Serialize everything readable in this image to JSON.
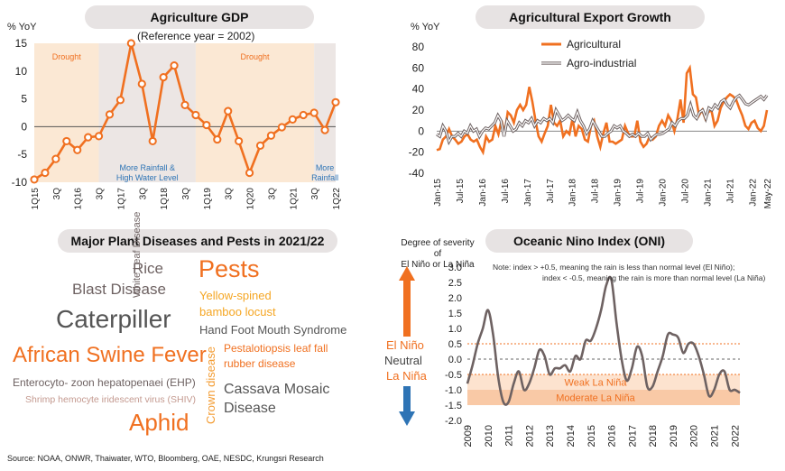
{
  "panels": {
    "agri_gdp": {
      "title": "Agriculture GDP",
      "subtitle": "(Reference year = 2002)",
      "ylabel": "% YoY",
      "band_labels": {
        "drought1": "Drought",
        "drought2": "Drought",
        "rain1a": "More Rainfall &",
        "rain1b": "High Water Level",
        "rain2a": "More",
        "rain2b": "Rainfall"
      }
    },
    "export": {
      "title": "Agricultural Export Growth",
      "ylabel": "% YoY"
    },
    "diseases": {
      "title": "Major Plant Diseases and Pests in 2021/22",
      "words": {
        "rice": "Rice",
        "blast": "Blast Disease",
        "caterpiller": "Caterpiller",
        "asf": "African Swine Fever",
        "ehp": "Enterocyto- zoon hepatopenaei (EHP)",
        "shiv": "Shrimp hemocyte iridescent virus (SHIV)",
        "aphid": "Aphid",
        "white_leaf": "White Leaf Disease",
        "crown": "Crown disease",
        "pests": "Pests",
        "bamboo1": "Yellow-spined",
        "bamboo2": "bamboo locust",
        "hfmd": "Hand Foot Mouth Syndrome",
        "pesta1": "Pestalotiopsis leaf fall",
        "pesta2": "rubber disease",
        "cassava1": "Cassava Mosaic",
        "cassava2": "Disease"
      }
    },
    "oni": {
      "title": "Oceanic Nino Index (ONI)",
      "severity1": "Degree of severity of",
      "severity2": "El Niño or La Niña",
      "el_nino": "El Niño",
      "neutral": "Neutral",
      "la_nina": "La Niña",
      "note1": "Note: index > +0.5, meaning the rain is less than normal level (El Niño);",
      "note2": "index < -0.5, meaning the rain is more than normal level (La Niña)",
      "weak": "Weak La Niña",
      "moderate": "Moderate La Niña"
    }
  },
  "source": "Source: NOAA, ONWR, Thaiwater, WTO, Bloomberg, OAE, NESDC, Krungsri Research",
  "colors": {
    "orange": "#f07020",
    "gray": "#6e6262",
    "light_orange": "#fbe8d4",
    "light_gray": "#ece6e4",
    "blue": "#2e74b5"
  },
  "chart_data": [
    {
      "type": "line",
      "title": "Agriculture GDP",
      "ylabel": "% YoY",
      "ylim": [
        -10,
        15
      ],
      "yticks": [
        -10,
        -5,
        0,
        5,
        10,
        15
      ],
      "x": [
        "1Q15",
        "2Q15",
        "3Q15",
        "4Q15",
        "1Q16",
        "2Q16",
        "3Q16",
        "4Q16",
        "1Q17",
        "2Q17",
        "3Q17",
        "4Q17",
        "1Q18",
        "2Q18",
        "3Q18",
        "4Q18",
        "1Q19",
        "2Q19",
        "3Q19",
        "4Q19",
        "1Q20",
        "2Q20",
        "3Q20",
        "4Q20",
        "1Q21",
        "2Q21",
        "3Q21",
        "4Q21",
        "1Q22"
      ],
      "xtick_labels": [
        "1Q15",
        "3Q",
        "1Q16",
        "3Q",
        "1Q17",
        "3Q",
        "1Q18",
        "3Q",
        "1Q19",
        "3Q",
        "1Q20",
        "3Q",
        "1Q21",
        "3Q",
        "1Q22"
      ],
      "series": [
        {
          "values": [
            -9.5,
            -8.3,
            -5.8,
            -2.6,
            -4.2,
            -1.9,
            -1.7,
            2.2,
            4.8,
            15,
            7.7,
            -2.6,
            8.9,
            11,
            3.9,
            2.1,
            0.3,
            -2.3,
            2.8,
            -2.6,
            -8.3,
            -3.4,
            -1.6,
            -0.1,
            1.3,
            2.1,
            2.5,
            -0.6,
            4.4
          ]
        }
      ],
      "bands": [
        {
          "from": "1Q15",
          "to": "3Q16",
          "label": "Drought",
          "shade": "light-orange"
        },
        {
          "from": "3Q16",
          "to": "4Q18",
          "label": "More Rainfall & High Water Level",
          "shade": "light-gray"
        },
        {
          "from": "4Q18",
          "to": "3Q21",
          "label": "Drought",
          "shade": "light-orange"
        },
        {
          "from": "3Q21",
          "to": "1Q22",
          "label": "More Rainfall",
          "shade": "light-gray"
        }
      ]
    },
    {
      "type": "line",
      "title": "Agricultural Export Growth",
      "ylabel": "% YoY",
      "ylim": [
        -40,
        80
      ],
      "yticks": [
        -40,
        -20,
        0,
        20,
        40,
        60,
        80
      ],
      "xtick_labels": [
        "Jan-15",
        "Jul-15",
        "Jan-16",
        "Jul-16",
        "Jan-17",
        "Jul-17",
        "Jan-18",
        "Jul-18",
        "Jan-19",
        "Jul-19",
        "Jan-20",
        "Jul-20",
        "Jan-21",
        "Jul-21",
        "Jan-22",
        "May-22"
      ],
      "x_start": "2015-01",
      "x_end": "2022-05",
      "series": [
        {
          "name": "Agricultural",
          "color": "#f07020",
          "values": [
            -18,
            -17,
            -8,
            -5,
            2,
            -5,
            -8,
            -12,
            -10,
            -5,
            -3,
            -8,
            -10,
            -8,
            -15,
            -20,
            -5,
            -10,
            -8,
            5,
            -3,
            10,
            -2,
            18,
            15,
            8,
            20,
            25,
            20,
            25,
            42,
            28,
            10,
            -5,
            -10,
            -2,
            5,
            25,
            8,
            5,
            10,
            -5,
            0,
            -3,
            12,
            -5,
            5,
            2,
            -8,
            -10,
            5,
            10,
            -5,
            -15,
            -2,
            8,
            -10,
            -10,
            -12,
            -10,
            -8,
            5,
            -2,
            -5,
            -5,
            10,
            -10,
            -15,
            -12,
            -5,
            -8,
            -5,
            5,
            10,
            5,
            15,
            10,
            0,
            12,
            30,
            8,
            55,
            60,
            35,
            32,
            15,
            20,
            12,
            18,
            20,
            5,
            10,
            22,
            28,
            32,
            35,
            33,
            30,
            22,
            15,
            5,
            2,
            8,
            10,
            3,
            0,
            5,
            20
          ]
        },
        {
          "name": "Agro-industrial",
          "color": "#6e6262",
          "values": [
            -3,
            -5,
            5,
            0,
            -10,
            -5,
            -5,
            -2,
            -5,
            0,
            -2,
            5,
            0,
            2,
            -5,
            0,
            3,
            2,
            5,
            8,
            15,
            10,
            -5,
            10,
            5,
            0,
            2,
            8,
            5,
            10,
            8,
            12,
            5,
            10,
            8,
            12,
            10,
            12,
            8,
            20,
            15,
            10,
            12,
            15,
            12,
            10,
            18,
            10,
            5,
            -2,
            2,
            10,
            5,
            0,
            -5,
            -5,
            -2,
            0,
            5,
            3,
            5,
            0,
            -2,
            -5,
            -3,
            -5,
            -2,
            -5,
            -5,
            -2,
            -8,
            -5,
            -3,
            -3,
            -2,
            0,
            2,
            8,
            5,
            10,
            12,
            12,
            15,
            25,
            15,
            12,
            18,
            20,
            12,
            22,
            20,
            25,
            22,
            28,
            30,
            25,
            22,
            28,
            32,
            34,
            30,
            26,
            25,
            27,
            29,
            31,
            33,
            30,
            34
          ]
        }
      ]
    },
    {
      "type": "line",
      "title": "Oceanic Nino Index (ONI)",
      "ylim": [
        -2.0,
        3.0
      ],
      "yticks": [
        -2.0,
        -1.5,
        -1.0,
        -0.5,
        0.0,
        0.5,
        1.0,
        1.5,
        2.0,
        2.5,
        3.0
      ],
      "xtick_labels": [
        "2009",
        "2010",
        "2011",
        "2012",
        "2013",
        "2014",
        "2015",
        "2016",
        "2017",
        "2018",
        "2019",
        "2020",
        "2021",
        "2022"
      ],
      "x_start": 2009.0,
      "x_end": 2022.25,
      "reference_lines": [
        0.5,
        -0.5
      ],
      "bands": [
        {
          "from": -0.5,
          "to": -1.0,
          "label": "Weak La Niña"
        },
        {
          "from": -1.0,
          "to": -1.5,
          "label": "Moderate La Niña"
        }
      ],
      "series": [
        {
          "color": "#6e6262",
          "points": [
            [
              2009.0,
              -0.8
            ],
            [
              2009.25,
              -0.2
            ],
            [
              2009.5,
              0.5
            ],
            [
              2009.75,
              1.0
            ],
            [
              2010.0,
              1.6
            ],
            [
              2010.25,
              0.8
            ],
            [
              2010.5,
              -0.6
            ],
            [
              2010.75,
              -1.4
            ],
            [
              2011.0,
              -1.4
            ],
            [
              2011.25,
              -0.8
            ],
            [
              2011.5,
              -0.4
            ],
            [
              2011.75,
              -1.0
            ],
            [
              2012.0,
              -0.8
            ],
            [
              2012.25,
              -0.3
            ],
            [
              2012.5,
              0.3
            ],
            [
              2012.75,
              0.1
            ],
            [
              2013.0,
              -0.5
            ],
            [
              2013.25,
              -0.3
            ],
            [
              2013.5,
              -0.3
            ],
            [
              2013.75,
              -0.2
            ],
            [
              2014.0,
              -0.4
            ],
            [
              2014.25,
              0.1
            ],
            [
              2014.5,
              0.0
            ],
            [
              2014.75,
              0.6
            ],
            [
              2015.0,
              0.6
            ],
            [
              2015.25,
              1.0
            ],
            [
              2015.5,
              1.6
            ],
            [
              2015.75,
              2.4
            ],
            [
              2016.0,
              2.6
            ],
            [
              2016.25,
              1.2
            ],
            [
              2016.5,
              0.0
            ],
            [
              2016.75,
              -0.7
            ],
            [
              2017.0,
              -0.3
            ],
            [
              2017.25,
              0.4
            ],
            [
              2017.5,
              0.1
            ],
            [
              2017.75,
              -0.9
            ],
            [
              2018.0,
              -0.9
            ],
            [
              2018.25,
              -0.4
            ],
            [
              2018.5,
              0.1
            ],
            [
              2018.75,
              0.8
            ],
            [
              2019.0,
              0.8
            ],
            [
              2019.25,
              0.7
            ],
            [
              2019.5,
              0.2
            ],
            [
              2019.75,
              0.5
            ],
            [
              2020.0,
              0.5
            ],
            [
              2020.25,
              0.1
            ],
            [
              2020.5,
              -0.5
            ],
            [
              2020.75,
              -1.2
            ],
            [
              2021.0,
              -1.0
            ],
            [
              2021.25,
              -0.5
            ],
            [
              2021.5,
              -0.4
            ],
            [
              2021.75,
              -1.0
            ],
            [
              2022.0,
              -1.0
            ],
            [
              2022.25,
              -1.1
            ]
          ]
        }
      ]
    }
  ]
}
